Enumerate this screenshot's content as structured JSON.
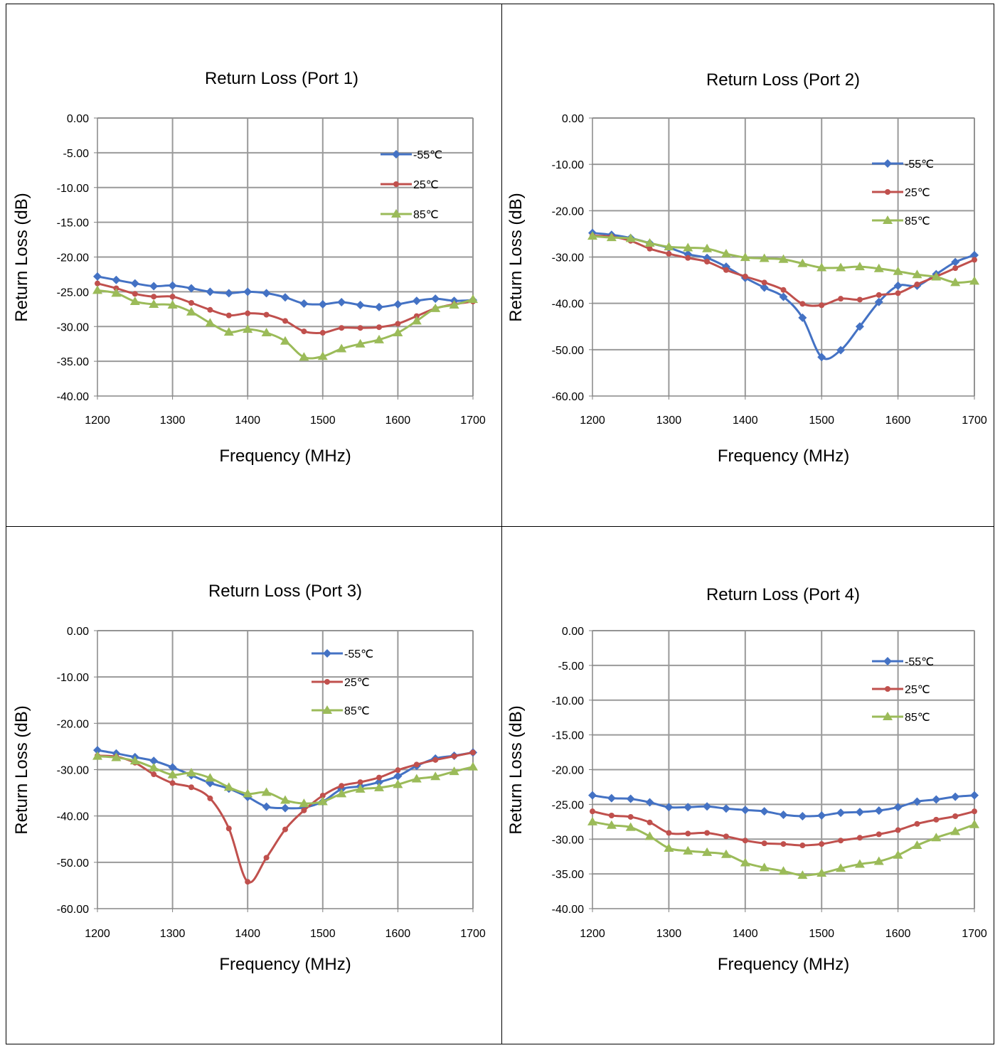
{
  "chart_data": [
    {
      "type": "line",
      "title": "Return Loss (Port 1)",
      "xlabel": "Frequency (MHz)",
      "ylabel": "Return Loss (dB)",
      "xlim": [
        1200,
        1700
      ],
      "ylim": [
        -40,
        0
      ],
      "xticks": [
        1200,
        1300,
        1400,
        1500,
        1600,
        1700
      ],
      "yticks": [
        "0.00",
        "-5.00",
        "-10.00",
        "-15.00",
        "-20.00",
        "-25.00",
        "-30.00",
        "-35.00",
        "-40.00"
      ],
      "grid": true,
      "legend_position": "top-right",
      "x": [
        1200,
        1225,
        1250,
        1275,
        1300,
        1325,
        1350,
        1375,
        1400,
        1425,
        1450,
        1475,
        1500,
        1525,
        1550,
        1575,
        1600,
        1625,
        1650,
        1675,
        1700
      ],
      "series": [
        {
          "name": "-55℃",
          "color": "#4472C4",
          "marker": "diamond",
          "values": [
            -22.8,
            -23.3,
            -23.8,
            -24.2,
            -24.1,
            -24.5,
            -25.0,
            -25.2,
            -25.0,
            -25.2,
            -25.8,
            -26.7,
            -26.8,
            -26.5,
            -26.9,
            -27.2,
            -26.8,
            -26.3,
            -26.0,
            -26.3,
            -26.2
          ]
        },
        {
          "name": "25℃",
          "color": "#C0504D",
          "marker": "circle",
          "values": [
            -23.8,
            -24.5,
            -25.3,
            -25.7,
            -25.7,
            -26.6,
            -27.6,
            -28.4,
            -28.1,
            -28.3,
            -29.2,
            -30.7,
            -30.9,
            -30.2,
            -30.2,
            -30.1,
            -29.6,
            -28.5,
            -27.4,
            -26.8,
            -26.4
          ]
        },
        {
          "name": "85℃",
          "color": "#9BBB59",
          "marker": "triangle",
          "values": [
            -24.8,
            -25.2,
            -26.4,
            -26.8,
            -26.9,
            -27.9,
            -29.5,
            -30.8,
            -30.4,
            -30.9,
            -32.1,
            -34.4,
            -34.3,
            -33.2,
            -32.5,
            -31.9,
            -30.9,
            -29.2,
            -27.4,
            -26.9,
            -26.1
          ]
        }
      ]
    },
    {
      "type": "line",
      "title": "Return Loss (Port 2)",
      "xlabel": "Frequency (MHz)",
      "ylabel": "Return Loss (dB)",
      "xlim": [
        1200,
        1700
      ],
      "ylim": [
        -60,
        0
      ],
      "xticks": [
        1200,
        1300,
        1400,
        1500,
        1600,
        1700
      ],
      "yticks": [
        "0.00",
        "-10.00",
        "-20.00",
        "-30.00",
        "-40.00",
        "-50.00",
        "-60.00"
      ],
      "grid": true,
      "legend_position": "top-right",
      "x": [
        1200,
        1225,
        1250,
        1275,
        1300,
        1325,
        1350,
        1375,
        1400,
        1425,
        1450,
        1475,
        1500,
        1525,
        1550,
        1575,
        1600,
        1625,
        1650,
        1675,
        1700
      ],
      "series": [
        {
          "name": "-55℃",
          "color": "#4472C4",
          "marker": "diamond",
          "values": [
            -24.8,
            -25.2,
            -25.9,
            -27.0,
            -28.0,
            -29.4,
            -30.2,
            -32.1,
            -34.5,
            -36.6,
            -38.6,
            -43.1,
            -51.6,
            -50.1,
            -45.0,
            -39.7,
            -36.2,
            -36.2,
            -33.7,
            -31.1,
            -29.6
          ]
        },
        {
          "name": "25℃",
          "color": "#C0504D",
          "marker": "circle",
          "values": [
            -25.4,
            -25.6,
            -26.5,
            -28.2,
            -29.3,
            -30.2,
            -31.0,
            -32.8,
            -34.2,
            -35.5,
            -37.1,
            -40.1,
            -40.4,
            -39.0,
            -39.2,
            -38.2,
            -37.8,
            -35.9,
            -34.2,
            -32.4,
            -30.6
          ]
        },
        {
          "name": "85℃",
          "color": "#9BBB59",
          "marker": "triangle",
          "values": [
            -25.5,
            -25.8,
            -26.0,
            -27.0,
            -27.8,
            -28.0,
            -28.2,
            -29.3,
            -30.1,
            -30.3,
            -30.5,
            -31.4,
            -32.3,
            -32.3,
            -32.1,
            -32.5,
            -33.1,
            -33.8,
            -34.3,
            -35.5,
            -35.2
          ]
        }
      ]
    },
    {
      "type": "line",
      "title": "Return Loss (Port 3)",
      "xlabel": "Frequency (MHz)",
      "ylabel": "Return Loss (dB)",
      "xlim": [
        1200,
        1700
      ],
      "ylim": [
        -60,
        0
      ],
      "xticks": [
        1200,
        1300,
        1400,
        1500,
        1600,
        1700
      ],
      "yticks": [
        "0.00",
        "-10.00",
        "-20.00",
        "-30.00",
        "-40.00",
        "-50.00",
        "-60.00"
      ],
      "grid": true,
      "legend_position": "top-right",
      "x": [
        1200,
        1225,
        1250,
        1275,
        1300,
        1325,
        1350,
        1375,
        1400,
        1425,
        1450,
        1475,
        1500,
        1525,
        1550,
        1575,
        1600,
        1625,
        1650,
        1675,
        1700
      ],
      "series": [
        {
          "name": "-55℃",
          "color": "#4472C4",
          "marker": "diamond",
          "values": [
            -25.8,
            -26.5,
            -27.3,
            -28.1,
            -29.5,
            -31.2,
            -32.9,
            -34.1,
            -35.9,
            -38.0,
            -38.3,
            -38.2,
            -36.9,
            -34.2,
            -33.6,
            -32.7,
            -31.4,
            -29.2,
            -27.6,
            -27.0,
            -26.3
          ]
        },
        {
          "name": "25℃",
          "color": "#C0504D",
          "marker": "circle",
          "values": [
            -27.0,
            -27.2,
            -28.5,
            -31.0,
            -32.9,
            -33.8,
            -36.2,
            -42.7,
            -54.2,
            -49.0,
            -42.9,
            -38.8,
            -35.6,
            -33.5,
            -32.7,
            -31.7,
            -30.1,
            -28.9,
            -27.9,
            -27.1,
            -26.3
          ]
        },
        {
          "name": "85℃",
          "color": "#9BBB59",
          "marker": "triangle",
          "values": [
            -27.1,
            -27.4,
            -28.1,
            -29.6,
            -31.1,
            -30.7,
            -31.8,
            -33.8,
            -35.2,
            -34.9,
            -36.6,
            -37.3,
            -36.9,
            -35.2,
            -34.2,
            -33.9,
            -33.2,
            -32.0,
            -31.5,
            -30.4,
            -29.4
          ]
        }
      ]
    },
    {
      "type": "line",
      "title": "Return Loss (Port 4)",
      "xlabel": "Frequency (MHz)",
      "ylabel": "Return Loss (dB)",
      "xlim": [
        1200,
        1700
      ],
      "ylim": [
        -40,
        0
      ],
      "xticks": [
        1200,
        1300,
        1400,
        1500,
        1600,
        1700
      ],
      "yticks": [
        "0.00",
        "-5.00",
        "-10.00",
        "-15.00",
        "-20.00",
        "-25.00",
        "-30.00",
        "-35.00",
        "-40.00"
      ],
      "grid": true,
      "legend_position": "top-right",
      "x": [
        1200,
        1225,
        1250,
        1275,
        1300,
        1325,
        1350,
        1375,
        1400,
        1425,
        1450,
        1475,
        1500,
        1525,
        1550,
        1575,
        1600,
        1625,
        1650,
        1675,
        1700
      ],
      "series": [
        {
          "name": "-55℃",
          "color": "#4472C4",
          "marker": "diamond",
          "values": [
            -23.7,
            -24.1,
            -24.2,
            -24.7,
            -25.4,
            -25.4,
            -25.3,
            -25.6,
            -25.8,
            -26.0,
            -26.5,
            -26.7,
            -26.6,
            -26.2,
            -26.1,
            -25.9,
            -25.4,
            -24.6,
            -24.3,
            -23.9,
            -23.7
          ]
        },
        {
          "name": "25℃",
          "color": "#C0504D",
          "marker": "circle",
          "values": [
            -26.0,
            -26.6,
            -26.8,
            -27.6,
            -29.1,
            -29.2,
            -29.1,
            -29.6,
            -30.2,
            -30.6,
            -30.7,
            -30.9,
            -30.7,
            -30.2,
            -29.8,
            -29.3,
            -28.7,
            -27.8,
            -27.2,
            -26.7,
            -26.0
          ]
        },
        {
          "name": "85℃",
          "color": "#9BBB59",
          "marker": "triangle",
          "values": [
            -27.5,
            -28.0,
            -28.3,
            -29.6,
            -31.3,
            -31.7,
            -31.9,
            -32.2,
            -33.4,
            -34.1,
            -34.6,
            -35.2,
            -34.9,
            -34.2,
            -33.6,
            -33.2,
            -32.3,
            -30.9,
            -29.8,
            -28.9,
            -27.9
          ]
        }
      ]
    }
  ]
}
